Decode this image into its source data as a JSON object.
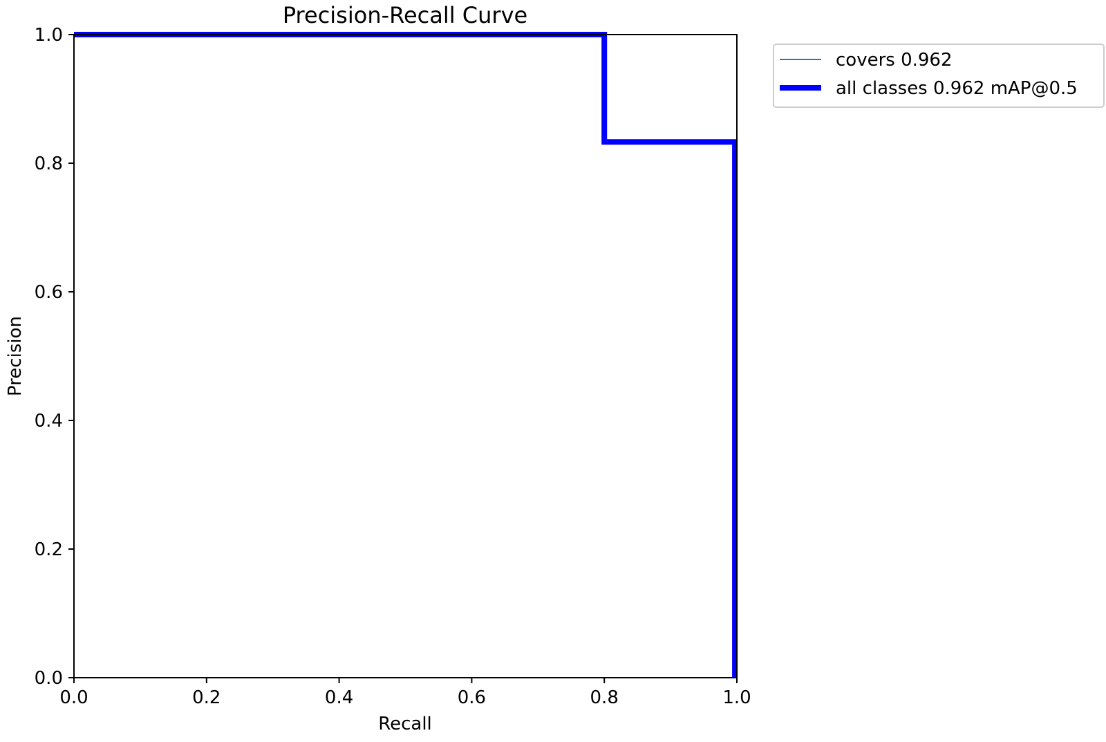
{
  "chart_data": {
    "type": "line",
    "title": "Precision-Recall Curve",
    "xlabel": "Recall",
    "ylabel": "Precision",
    "xlim": [
      0.0,
      1.0
    ],
    "ylim": [
      0.0,
      1.0
    ],
    "xticks": [
      "0.0",
      "0.2",
      "0.4",
      "0.6",
      "0.8",
      "1.0"
    ],
    "yticks": [
      "0.0",
      "0.2",
      "0.4",
      "0.6",
      "0.8",
      "1.0"
    ],
    "grid": false,
    "legend_placement": "outside upper-right",
    "series": [
      {
        "name": "covers 0.962",
        "color": "#1f77b4",
        "style": "thin",
        "x": [
          0.0,
          0.8,
          0.8,
          0.997,
          0.997
        ],
        "y": [
          1.0,
          1.0,
          0.833,
          0.833,
          0.0
        ]
      },
      {
        "name": "all classes 0.962 mAP@0.5",
        "color": "#0000ff",
        "style": "thick",
        "x": [
          0.0,
          0.8,
          0.8,
          0.997,
          0.997
        ],
        "y": [
          1.0,
          1.0,
          0.833,
          0.833,
          0.0
        ]
      }
    ]
  }
}
